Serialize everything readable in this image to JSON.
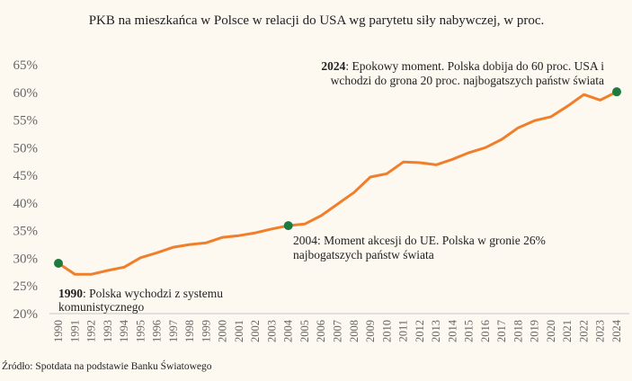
{
  "chart_data": {
    "type": "line",
    "title": "PKB na mieszkańca w Polsce w relacji do USA wg parytetu siły nabywczej, w proc.",
    "xlabel": "",
    "ylabel": "",
    "ylim": [
      20,
      65
    ],
    "yticks": [
      "20%",
      "25%",
      "30%",
      "35%",
      "40%",
      "45%",
      "50%",
      "55%",
      "60%",
      "65%"
    ],
    "grid": false,
    "x": [
      "1990",
      "1991",
      "1992",
      "1993",
      "1994",
      "1995",
      "1996",
      "1997",
      "1998",
      "1999",
      "2000",
      "2001",
      "2002",
      "2003",
      "2004",
      "2005",
      "2006",
      "2007",
      "2008",
      "2009",
      "2010",
      "2011",
      "2012",
      "2013",
      "2014",
      "2015",
      "2016",
      "2017",
      "2018",
      "2019",
      "2020",
      "2021",
      "2022",
      "2023",
      "2024"
    ],
    "values": [
      29.1,
      27.1,
      27.1,
      27.8,
      28.4,
      30.1,
      31.0,
      32.0,
      32.5,
      32.8,
      33.8,
      34.1,
      34.6,
      35.3,
      35.9,
      36.2,
      37.7,
      39.8,
      41.9,
      44.7,
      45.3,
      47.4,
      47.3,
      46.9,
      47.9,
      49.1,
      50.0,
      51.5,
      53.6,
      54.9,
      55.6,
      57.5,
      59.6,
      58.6,
      60.1
    ],
    "line_color": "#f07f2c",
    "marker_color": "#1e7a3e",
    "highlighted": [
      "1990",
      "2004",
      "2024"
    ],
    "annotations": [
      {
        "year_bold": "1990",
        "text": ": Polska wychodzi z systemu",
        "line2": "komunistycznego"
      },
      {
        "year_bold": "",
        "text": "2004: Moment akcesji do UE. Polska w gronie 26%",
        "line2": "najbogatszych państw świata"
      },
      {
        "year_bold": "2024",
        "text": ": Epokowy moment. Polska dobija do 60 proc. USA i",
        "line2": "wchodzi do grona 20 proc. najbogatszych państw świata"
      }
    ],
    "source": "Źródło: Spotdata na podstawie Banku Światowego"
  }
}
